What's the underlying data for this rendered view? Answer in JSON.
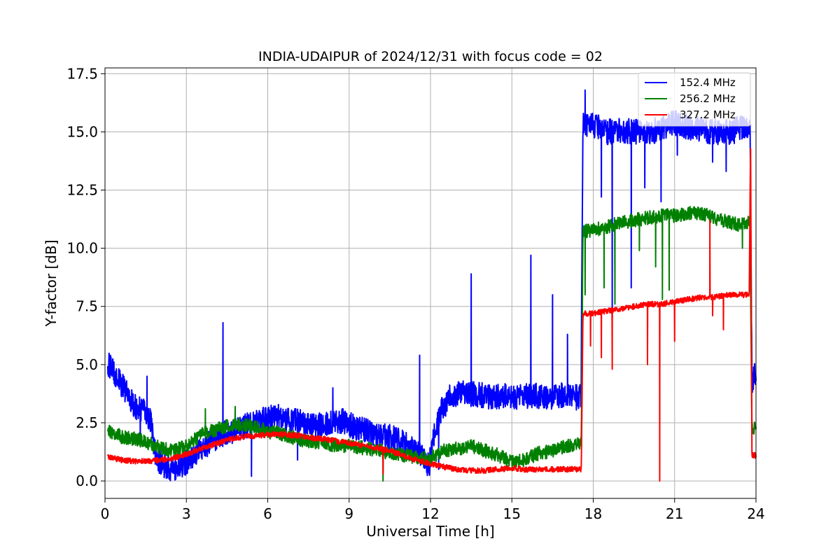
{
  "chart_data": {
    "type": "line",
    "title": "INDIA-UDAIPUR of 2024/12/31 with focus code = 02",
    "xlabel": "Universal Time [h]",
    "ylabel": "Y-factor [dB]",
    "xlim": [
      0,
      24
    ],
    "ylim": [
      -0.75,
      17.75
    ],
    "x_ticks": [
      0,
      3,
      6,
      9,
      12,
      15,
      18,
      21,
      24
    ],
    "x_tick_labels": [
      "0",
      "3",
      "6",
      "9",
      "12",
      "15",
      "18",
      "21",
      "24"
    ],
    "y_ticks": [
      0.0,
      2.5,
      5.0,
      7.5,
      10.0,
      12.5,
      15.0,
      17.5
    ],
    "y_tick_labels": [
      "0.0",
      "2.5",
      "5.0",
      "7.5",
      "10.0",
      "12.5",
      "15.0",
      "17.5"
    ],
    "grid": true,
    "legend_position": "top-right",
    "series": [
      {
        "name": "152.4 MHz",
        "color": "#0000ff",
        "noise": 0.55,
        "points": [
          [
            0.1,
            5.0
          ],
          [
            0.3,
            4.8
          ],
          [
            0.5,
            4.3
          ],
          [
            0.8,
            3.8
          ],
          [
            1.1,
            3.2
          ],
          [
            1.4,
            3.0
          ],
          [
            1.7,
            2.6
          ],
          [
            1.8,
            1.4
          ],
          [
            2.1,
            0.6
          ],
          [
            2.5,
            0.5
          ],
          [
            2.9,
            0.7
          ],
          [
            3.3,
            1.2
          ],
          [
            3.8,
            1.6
          ],
          [
            4.3,
            2.0
          ],
          [
            4.8,
            2.2
          ],
          [
            5.3,
            2.4
          ],
          [
            5.8,
            2.6
          ],
          [
            6.3,
            2.8
          ],
          [
            6.8,
            2.6
          ],
          [
            7.3,
            2.5
          ],
          [
            7.8,
            2.4
          ],
          [
            8.3,
            2.5
          ],
          [
            8.8,
            2.6
          ],
          [
            9.2,
            2.3
          ],
          [
            9.7,
            2.1
          ],
          [
            10.2,
            2.0
          ],
          [
            10.7,
            1.8
          ],
          [
            11.2,
            1.5
          ],
          [
            11.7,
            1.0
          ],
          [
            11.95,
            0.7
          ],
          [
            12.1,
            1.8
          ],
          [
            12.4,
            3.0
          ],
          [
            12.7,
            3.6
          ],
          [
            13.2,
            3.8
          ],
          [
            13.8,
            3.7
          ],
          [
            14.3,
            3.6
          ],
          [
            14.8,
            3.7
          ],
          [
            15.3,
            3.6
          ],
          [
            15.8,
            3.7
          ],
          [
            16.3,
            3.5
          ],
          [
            16.8,
            3.7
          ],
          [
            17.2,
            3.6
          ],
          [
            17.55,
            3.6
          ],
          [
            17.62,
            15.3
          ],
          [
            18.0,
            15.3
          ],
          [
            18.5,
            15.0
          ],
          [
            19.0,
            15.1
          ],
          [
            19.5,
            15.0
          ],
          [
            20.0,
            14.9
          ],
          [
            20.5,
            15.2
          ],
          [
            21.0,
            15.4
          ],
          [
            21.5,
            15.2
          ],
          [
            22.0,
            15.1
          ],
          [
            22.5,
            15.0
          ],
          [
            23.0,
            15.0
          ],
          [
            23.5,
            15.2
          ],
          [
            23.78,
            15.3
          ],
          [
            23.85,
            4.3
          ],
          [
            24.0,
            4.6
          ]
        ],
        "spikes": [
          [
            1.55,
            4.5
          ],
          [
            1.3,
            1.6
          ],
          [
            4.35,
            6.8
          ],
          [
            5.4,
            0.2
          ],
          [
            7.1,
            0.9
          ],
          [
            8.4,
            4.0
          ],
          [
            11.6,
            5.4
          ],
          [
            12.3,
            0.5
          ],
          [
            13.5,
            8.9
          ],
          [
            15.7,
            9.7
          ],
          [
            16.5,
            8.0
          ],
          [
            17.05,
            6.3
          ],
          [
            17.7,
            16.8
          ],
          [
            18.3,
            12.2
          ],
          [
            18.7,
            7.0
          ],
          [
            19.4,
            8.3
          ],
          [
            19.9,
            12.6
          ],
          [
            20.5,
            12.0
          ],
          [
            21.1,
            14.0
          ],
          [
            22.4,
            13.7
          ],
          [
            22.9,
            13.3
          ],
          [
            23.2,
            14.5
          ]
        ]
      },
      {
        "name": "256.2 MHz",
        "color": "#008000",
        "noise": 0.3,
        "points": [
          [
            0.1,
            2.2
          ],
          [
            0.6,
            1.9
          ],
          [
            1.2,
            1.8
          ],
          [
            1.7,
            1.6
          ],
          [
            2.1,
            1.4
          ],
          [
            2.6,
            1.3
          ],
          [
            3.1,
            1.6
          ],
          [
            3.6,
            2.0
          ],
          [
            4.1,
            2.2
          ],
          [
            4.6,
            2.4
          ],
          [
            5.1,
            2.4
          ],
          [
            5.6,
            2.3
          ],
          [
            6.1,
            2.1
          ],
          [
            6.6,
            2.0
          ],
          [
            7.1,
            1.8
          ],
          [
            7.6,
            1.7
          ],
          [
            8.1,
            1.6
          ],
          [
            8.6,
            1.5
          ],
          [
            9.1,
            1.5
          ],
          [
            9.6,
            1.4
          ],
          [
            10.1,
            1.3
          ],
          [
            10.6,
            1.2
          ],
          [
            11.1,
            1.1
          ],
          [
            11.6,
            1.0
          ],
          [
            12.0,
            1.0
          ],
          [
            12.5,
            1.3
          ],
          [
            13.0,
            1.4
          ],
          [
            13.5,
            1.5
          ],
          [
            14.0,
            1.3
          ],
          [
            14.5,
            1.1
          ],
          [
            15.0,
            0.8
          ],
          [
            15.5,
            0.9
          ],
          [
            16.0,
            1.2
          ],
          [
            16.5,
            1.3
          ],
          [
            17.0,
            1.5
          ],
          [
            17.5,
            1.6
          ],
          [
            17.56,
            1.6
          ],
          [
            17.62,
            10.7
          ],
          [
            18.0,
            10.8
          ],
          [
            18.5,
            10.9
          ],
          [
            19.0,
            11.1
          ],
          [
            19.5,
            11.2
          ],
          [
            20.0,
            11.3
          ],
          [
            20.5,
            11.4
          ],
          [
            21.0,
            11.4
          ],
          [
            21.5,
            11.5
          ],
          [
            22.0,
            11.5
          ],
          [
            22.5,
            11.3
          ],
          [
            23.0,
            11.1
          ],
          [
            23.5,
            11.0
          ],
          [
            23.78,
            11.1
          ],
          [
            23.85,
            2.3
          ],
          [
            24.0,
            2.2
          ]
        ],
        "spikes": [
          [
            3.7,
            3.1
          ],
          [
            4.8,
            3.2
          ],
          [
            10.25,
            0.0
          ],
          [
            17.7,
            8.0
          ],
          [
            18.4,
            8.3
          ],
          [
            18.8,
            7.6
          ],
          [
            19.7,
            9.9
          ],
          [
            20.3,
            9.2
          ],
          [
            20.55,
            7.8
          ],
          [
            20.8,
            8.2
          ],
          [
            22.3,
            11.2
          ],
          [
            23.5,
            10.0
          ]
        ]
      },
      {
        "name": "327.2 MHz",
        "color": "#ff0000",
        "noise": 0.12,
        "points": [
          [
            0.1,
            1.05
          ],
          [
            0.6,
            0.9
          ],
          [
            1.1,
            0.85
          ],
          [
            1.6,
            0.85
          ],
          [
            2.1,
            0.9
          ],
          [
            2.6,
            1.0
          ],
          [
            3.1,
            1.2
          ],
          [
            3.6,
            1.4
          ],
          [
            4.1,
            1.6
          ],
          [
            4.6,
            1.8
          ],
          [
            5.1,
            1.9
          ],
          [
            5.6,
            1.95
          ],
          [
            6.1,
            2.0
          ],
          [
            6.6,
            2.0
          ],
          [
            7.1,
            1.95
          ],
          [
            7.6,
            1.85
          ],
          [
            8.1,
            1.8
          ],
          [
            8.6,
            1.7
          ],
          [
            9.1,
            1.6
          ],
          [
            9.6,
            1.5
          ],
          [
            10.1,
            1.4
          ],
          [
            10.6,
            1.25
          ],
          [
            11.1,
            1.05
          ],
          [
            11.6,
            0.85
          ],
          [
            12.0,
            0.75
          ],
          [
            12.5,
            0.6
          ],
          [
            13.0,
            0.5
          ],
          [
            13.5,
            0.45
          ],
          [
            14.0,
            0.45
          ],
          [
            14.5,
            0.5
          ],
          [
            15.0,
            0.55
          ],
          [
            15.5,
            0.5
          ],
          [
            16.0,
            0.5
          ],
          [
            16.5,
            0.5
          ],
          [
            17.0,
            0.5
          ],
          [
            17.5,
            0.5
          ],
          [
            17.56,
            0.5
          ],
          [
            17.62,
            7.2
          ],
          [
            18.0,
            7.2
          ],
          [
            18.5,
            7.3
          ],
          [
            19.0,
            7.4
          ],
          [
            19.5,
            7.5
          ],
          [
            20.0,
            7.6
          ],
          [
            20.5,
            7.6
          ],
          [
            21.0,
            7.7
          ],
          [
            21.5,
            7.8
          ],
          [
            22.0,
            7.9
          ],
          [
            22.5,
            7.9
          ],
          [
            23.0,
            8.0
          ],
          [
            23.5,
            8.0
          ],
          [
            23.75,
            8.0
          ],
          [
            23.8,
            14.5
          ],
          [
            23.85,
            1.1
          ],
          [
            24.0,
            1.1
          ]
        ],
        "spikes": [
          [
            10.25,
            0.3
          ],
          [
            17.9,
            5.8
          ],
          [
            18.3,
            5.3
          ],
          [
            18.7,
            4.8
          ],
          [
            20.0,
            5.0
          ],
          [
            20.45,
            0.0
          ],
          [
            21.0,
            6.0
          ],
          [
            22.3,
            11.2
          ],
          [
            22.4,
            7.1
          ],
          [
            22.8,
            6.5
          ]
        ]
      }
    ]
  }
}
